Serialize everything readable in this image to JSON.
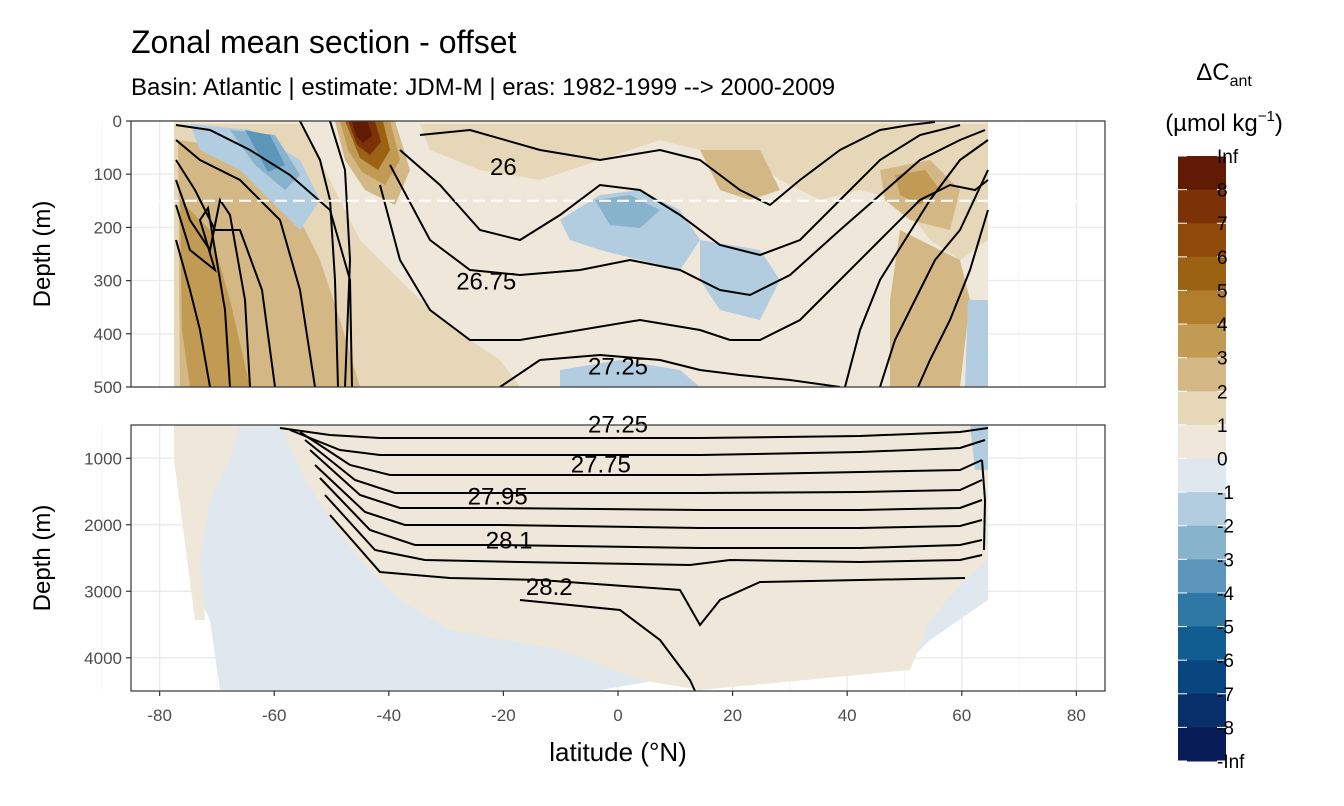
{
  "chart_data": {
    "type": "heatmap",
    "title": "Zonal mean section - offset",
    "subtitle": "Basin: Atlantic | estimate: JDM-M | eras: 1982-1999 --> 2000-2009",
    "xlabel": "latitude (°N)",
    "ylabel": "Depth (m)",
    "xlim": [
      -85,
      85
    ],
    "x_ticks": [
      -80,
      -60,
      -40,
      -20,
      0,
      20,
      40,
      60,
      80
    ],
    "panels": [
      {
        "name": "upper",
        "ylim": [
          0,
          500
        ],
        "y_ticks": [
          0,
          100,
          200,
          300,
          400,
          500
        ],
        "reference_depth": 150
      },
      {
        "name": "lower",
        "ylim": [
          500,
          4500
        ],
        "y_ticks": [
          1000,
          2000,
          3000,
          4000
        ]
      }
    ],
    "legend": {
      "title_main": "ΔC",
      "title_sub": "ant",
      "title_units_prefix": "(µmol kg",
      "title_units_sup": "−1",
      "title_units_suffix": ")",
      "position": "right",
      "labels": [
        "Inf",
        "8",
        "7",
        "6",
        "5",
        "4",
        "3",
        "2",
        "1",
        "0",
        "-1",
        "-2",
        "-3",
        "-4",
        "-5",
        "-6",
        "-7",
        "-8",
        "-Inf"
      ],
      "colors": [
        "#611a04",
        "#7c3206",
        "#8f4a0a",
        "#9c6214",
        "#b07e2c",
        "#c19a53",
        "#d3b886",
        "#e5d7b7",
        "#efe7d9",
        "#dfe8ee",
        "#b3cde0",
        "#88b3cd",
        "#5c97bb",
        "#2f78a6",
        "#115d92",
        "#094680",
        "#082f6a",
        "#081d58"
      ]
    },
    "isopycnal_labels": [
      {
        "text": "26",
        "lat": -20,
        "depth": 85,
        "panel": "upper"
      },
      {
        "text": "26.75",
        "lat": -23,
        "depth": 300,
        "panel": "upper"
      },
      {
        "text": "27.25",
        "lat": 0,
        "depth": 460,
        "panel": "upper"
      },
      {
        "text": "27.25",
        "lat": 0,
        "depth": 480,
        "panel": "lower"
      },
      {
        "text": "27.75",
        "lat": -3,
        "depth": 1080,
        "panel": "lower"
      },
      {
        "text": "27.95",
        "lat": -21,
        "depth": 1560,
        "panel": "lower"
      },
      {
        "text": "28.1",
        "lat": -19,
        "depth": 2220,
        "panel": "lower"
      },
      {
        "text": "28.2",
        "lat": -12,
        "depth": 2920,
        "panel": "lower"
      }
    ],
    "grid": true
  }
}
